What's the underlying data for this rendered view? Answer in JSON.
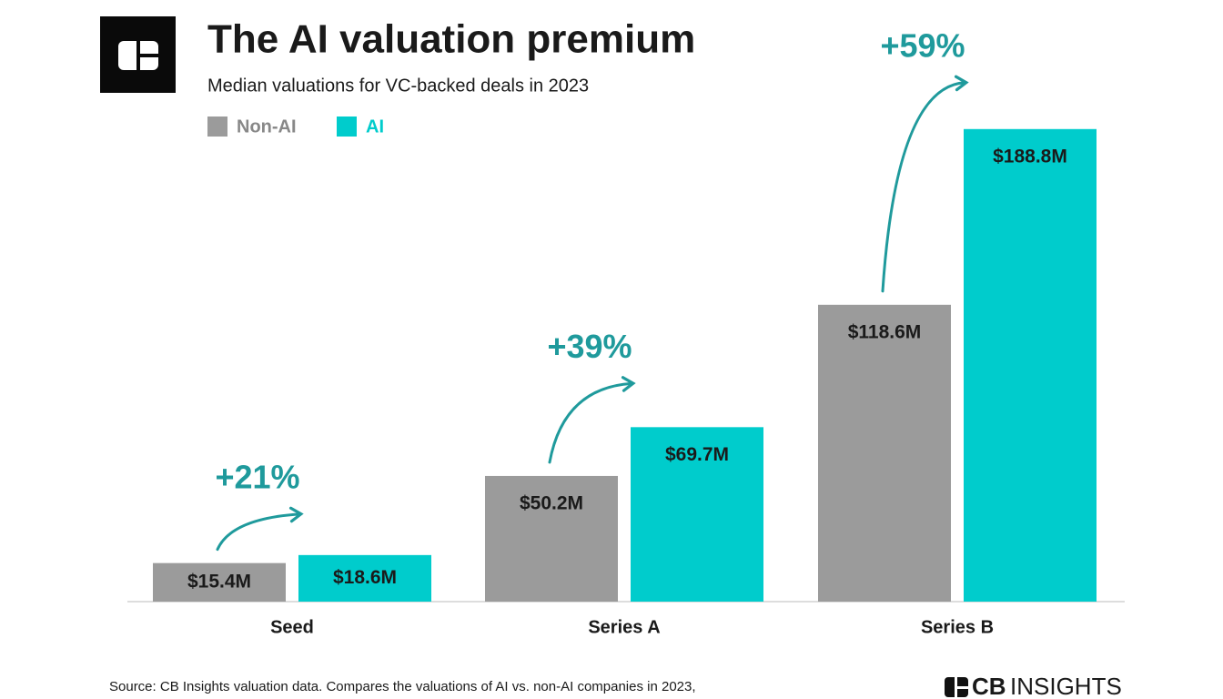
{
  "chart_data": {
    "type": "bar",
    "title": "The AI valuation premium",
    "subtitle": "Median valuations for VC-backed deals in 2023",
    "categories": [
      "Seed",
      "Series A",
      "Series B"
    ],
    "series": [
      {
        "name": "Non-AI",
        "color": "#9b9b9b",
        "values": [
          15.4,
          50.2,
          118.6
        ],
        "value_labels": [
          "$15.4M",
          "$50.2M",
          "$118.6M"
        ]
      },
      {
        "name": "AI",
        "color": "#00cccc",
        "values": [
          18.6,
          69.7,
          188.8
        ],
        "value_labels": [
          "$18.6M",
          "$69.7M",
          "$188.8M"
        ]
      }
    ],
    "annotations": [
      "+21%",
      "+39%",
      "+59%"
    ],
    "annotation_color": "#1f9a9c",
    "source": "Source: CB Insights valuation data. Compares the valuations of AI vs. non-AI companies in 2023,",
    "brand_bold": "CB",
    "brand_light": "INSIGHTS"
  }
}
